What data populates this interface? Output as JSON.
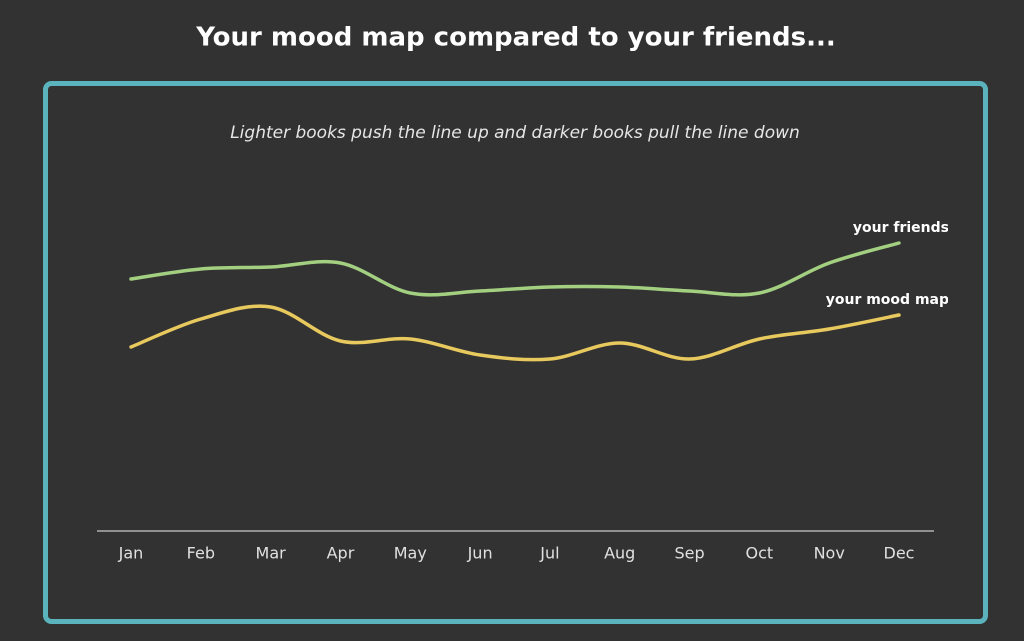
{
  "chart_data": {
    "type": "line",
    "title": "Your mood map compared to your friends...",
    "subtitle": "Lighter books push the line up and darker books pull the line down",
    "categories": [
      "Jan",
      "Feb",
      "Mar",
      "Apr",
      "May",
      "Jun",
      "Jul",
      "Aug",
      "Sep",
      "Oct",
      "Nov",
      "Dec"
    ],
    "series": [
      {
        "name": "your friends",
        "color": "#a3cf80",
        "values": [
          63,
          65.5,
          66,
          67,
          59.5,
          60,
          61,
          61,
          60,
          59.5,
          67,
          72
        ]
      },
      {
        "name": "your mood map",
        "color": "#e8c95e",
        "values": [
          46,
          53,
          56,
          47.5,
          48,
          44,
          43,
          47,
          43,
          48,
          50.5,
          54
        ]
      }
    ],
    "ylim": [
      0,
      100
    ]
  }
}
